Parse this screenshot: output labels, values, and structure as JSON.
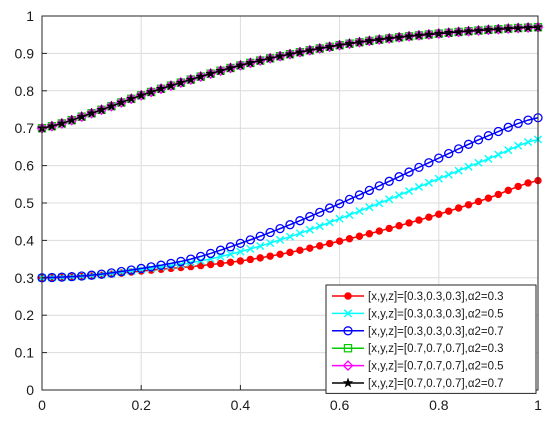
{
  "chart_data": {
    "type": "line",
    "title": "",
    "xlabel": "",
    "ylabel": "",
    "xlim": [
      0,
      1
    ],
    "ylim": [
      0,
      1
    ],
    "xticks": [
      "0",
      "0.2",
      "0.4",
      "0.6",
      "0.8",
      "1"
    ],
    "yticks": [
      "0",
      "0.1",
      "0.2",
      "0.3",
      "0.4",
      "0.5",
      "0.6",
      "0.7",
      "0.8",
      "0.9",
      "1"
    ],
    "grid": true,
    "legend_position": "bottom-right",
    "x": [
      0,
      0.1,
      0.2,
      0.3,
      0.4,
      0.5,
      0.6,
      0.7,
      0.8,
      0.9,
      1.0
    ],
    "series": [
      {
        "name": "[x,y,z]=[0.3,0.3,0.3],α2=0.3",
        "color": "#ff0000",
        "marker": "dot",
        "values": [
          0.3,
          0.305,
          0.318,
          0.33,
          0.345,
          0.368,
          0.398,
          0.432,
          0.47,
          0.513,
          0.56
        ]
      },
      {
        "name": "[x,y,z]=[0.3,0.3,0.3],α2=0.5",
        "color": "#00ffff",
        "marker": "x",
        "values": [
          0.3,
          0.306,
          0.322,
          0.34,
          0.37,
          0.41,
          0.458,
          0.51,
          0.565,
          0.618,
          0.67
        ]
      },
      {
        "name": "[x,y,z]=[0.3,0.3,0.3],α2=0.7",
        "color": "#0000ff",
        "marker": "circle",
        "values": [
          0.3,
          0.307,
          0.325,
          0.35,
          0.392,
          0.442,
          0.498,
          0.558,
          0.62,
          0.68,
          0.728
        ]
      },
      {
        "name": "[x,y,z]=[0.7,0.7,0.7],α2=0.3",
        "color": "#00cc00",
        "marker": "square",
        "values": [
          0.7,
          0.74,
          0.788,
          0.83,
          0.868,
          0.898,
          0.922,
          0.94,
          0.953,
          0.963,
          0.97
        ]
      },
      {
        "name": "[x,y,z]=[0.7,0.7,0.7],α2=0.5",
        "color": "#ff00ff",
        "marker": "diamond",
        "values": [
          0.7,
          0.74,
          0.788,
          0.83,
          0.868,
          0.898,
          0.922,
          0.94,
          0.953,
          0.963,
          0.97
        ]
      },
      {
        "name": "[x,y,z]=[0.7,0.7,0.7],α2=0.7",
        "color": "#000000",
        "marker": "star",
        "values": [
          0.7,
          0.74,
          0.788,
          0.83,
          0.868,
          0.898,
          0.922,
          0.94,
          0.953,
          0.963,
          0.97
        ]
      }
    ]
  }
}
